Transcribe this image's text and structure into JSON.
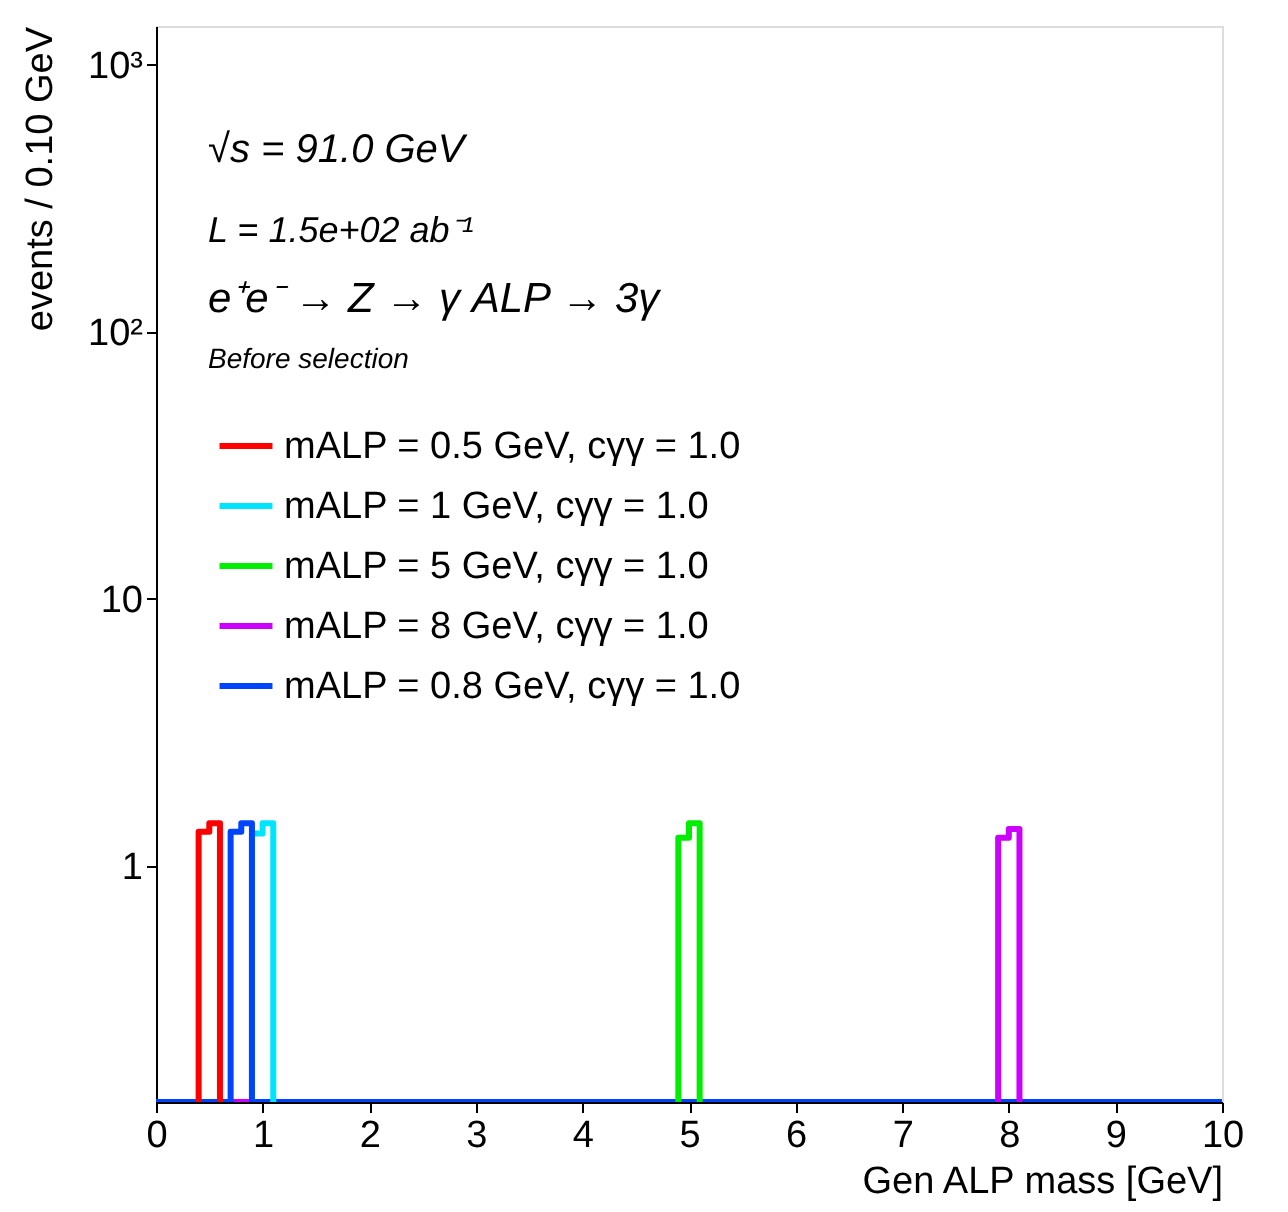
{
  "chart_data": {
    "type": "histogram",
    "xlabel": "Gen ALP mass [GeV]",
    "ylabel": "events / 0.10 GeV",
    "annotations": [
      "√s = 91.0 GeV",
      "L = 1.5e+02 ab⁻¹",
      "e⁺e⁻  → Z  →  γ ALP  → 3γ",
      "Before selection"
    ],
    "bins": [
      0.0,
      0.1,
      0.2,
      0.3,
      0.4,
      0.5,
      0.6,
      0.7,
      0.8,
      0.9,
      1.0,
      1.1,
      1.2,
      1.3,
      1.4,
      1.5,
      1.6,
      1.7,
      1.8,
      1.9,
      2.0,
      2.1,
      2.2,
      2.3,
      2.4,
      2.5,
      2.6,
      2.7,
      2.8,
      2.9,
      3.0,
      3.1,
      3.2,
      3.3,
      3.4,
      3.5,
      3.6,
      3.7,
      3.8,
      3.9,
      4.0,
      4.1,
      4.2,
      4.3,
      4.4,
      4.5,
      4.6,
      4.7,
      4.8,
      4.9,
      5.0,
      5.1,
      5.2,
      5.3,
      5.4,
      5.5,
      5.6,
      5.7,
      5.8,
      5.9,
      6.0,
      6.1,
      6.2,
      6.3,
      6.4,
      6.5,
      6.6,
      6.7,
      6.8,
      6.9,
      7.0,
      7.1,
      7.2,
      7.3,
      7.4,
      7.5,
      7.6,
      7.7,
      7.8,
      7.9,
      8.0,
      8.1,
      8.2,
      8.3,
      8.4,
      8.5,
      8.6,
      8.7,
      8.8,
      8.9,
      9.0,
      9.1,
      9.2,
      9.3,
      9.4,
      9.5,
      9.6,
      9.7,
      9.8,
      9.9,
      10.0
    ],
    "series": [
      {
        "name": "mALP = 0.5 GeV, cγγ = 1.0",
        "color": "#ff0000",
        "values": [
          null,
          null,
          null,
          null,
          1.34,
          1.44,
          null,
          null,
          null,
          null,
          null,
          null,
          null,
          null,
          null,
          null,
          null,
          null,
          null,
          null,
          null,
          null,
          null,
          null,
          null,
          null,
          null,
          null,
          null,
          null,
          null,
          null,
          null,
          null,
          null,
          null,
          null,
          null,
          null,
          null,
          null,
          null,
          null,
          null,
          null,
          null,
          null,
          null,
          null,
          null,
          null,
          null,
          null,
          null,
          null,
          null,
          null,
          null,
          null,
          null,
          null,
          null,
          null,
          null,
          null,
          null,
          null,
          null,
          null,
          null,
          null,
          null,
          null,
          null,
          null,
          null,
          null,
          null,
          null,
          null,
          null,
          null,
          null,
          null,
          null,
          null,
          null,
          null,
          null,
          null,
          null,
          null,
          null,
          null,
          null,
          null,
          null,
          null,
          null,
          null
        ]
      },
      {
        "name": "mALP = 1 GeV, cγγ = 1.0",
        "color": "#00e5ff",
        "values": [
          null,
          null,
          null,
          null,
          null,
          null,
          null,
          null,
          null,
          1.32,
          1.44,
          null,
          null,
          null,
          null,
          null,
          null,
          null,
          null,
          null,
          null,
          null,
          null,
          null,
          null,
          null,
          null,
          null,
          null,
          null,
          null,
          null,
          null,
          null,
          null,
          null,
          null,
          null,
          null,
          null,
          null,
          null,
          null,
          null,
          null,
          null,
          null,
          null,
          null,
          null,
          null,
          null,
          null,
          null,
          null,
          null,
          null,
          null,
          null,
          null,
          null,
          null,
          null,
          null,
          null,
          null,
          null,
          null,
          null,
          null,
          null,
          null,
          null,
          null,
          null,
          null,
          null,
          null,
          null,
          null,
          null,
          null,
          null,
          null,
          null,
          null,
          null,
          null,
          null,
          null,
          null,
          null,
          null,
          null,
          null,
          null,
          null,
          null,
          null,
          null
        ]
      },
      {
        "name": "mALP = 5 GeV, cγγ = 1.0",
        "color": "#00ee00",
        "values": [
          null,
          null,
          null,
          null,
          null,
          null,
          null,
          null,
          null,
          null,
          null,
          null,
          null,
          null,
          null,
          null,
          null,
          null,
          null,
          null,
          null,
          null,
          null,
          null,
          null,
          null,
          null,
          null,
          null,
          null,
          null,
          null,
          null,
          null,
          null,
          null,
          null,
          null,
          null,
          null,
          null,
          null,
          null,
          null,
          null,
          null,
          null,
          null,
          null,
          1.27,
          1.44,
          null,
          null,
          null,
          null,
          null,
          null,
          null,
          null,
          null,
          null,
          null,
          null,
          null,
          null,
          null,
          null,
          null,
          null,
          null,
          null,
          null,
          null,
          null,
          null,
          null,
          null,
          null,
          null,
          null,
          null,
          null,
          null,
          null,
          null,
          null,
          null,
          null,
          null,
          null,
          null,
          null,
          null,
          null,
          null,
          null,
          null,
          null,
          null,
          null
        ]
      },
      {
        "name": "mALP = 8 GeV, cγγ = 1.0",
        "color": "#cc00ff",
        "values": [
          null,
          null,
          null,
          null,
          null,
          null,
          null,
          null,
          null,
          null,
          null,
          null,
          null,
          null,
          null,
          null,
          null,
          null,
          null,
          null,
          null,
          null,
          null,
          null,
          null,
          null,
          null,
          null,
          null,
          null,
          null,
          null,
          null,
          null,
          null,
          null,
          null,
          null,
          null,
          null,
          null,
          null,
          null,
          null,
          null,
          null,
          null,
          null,
          null,
          null,
          null,
          null,
          null,
          null,
          null,
          null,
          null,
          null,
          null,
          null,
          null,
          null,
          null,
          null,
          null,
          null,
          null,
          null,
          null,
          null,
          null,
          null,
          null,
          null,
          null,
          null,
          null,
          null,
          null,
          1.27,
          1.37,
          null,
          null,
          null,
          null,
          null,
          null,
          null,
          null,
          null,
          null,
          null,
          null,
          null,
          null,
          null,
          null,
          null,
          null,
          null
        ]
      },
      {
        "name": "mALP = 0.8 GeV, cγγ = 1.0",
        "color": "#0044ff",
        "values": [
          null,
          null,
          null,
          null,
          null,
          null,
          null,
          1.34,
          1.44,
          null,
          null,
          null,
          null,
          null,
          null,
          null,
          null,
          null,
          null,
          null,
          null,
          null,
          null,
          null,
          null,
          null,
          null,
          null,
          null,
          null,
          null,
          null,
          null,
          null,
          null,
          null,
          null,
          null,
          null,
          null,
          null,
          null,
          null,
          null,
          null,
          null,
          null,
          null,
          null,
          null,
          null,
          null,
          null,
          null,
          null,
          null,
          null,
          null,
          null,
          null,
          null,
          null,
          null,
          null,
          null,
          null,
          null,
          null,
          null,
          null,
          null,
          null,
          null,
          null,
          null,
          null,
          null,
          null,
          null,
          null,
          null,
          null,
          null,
          null,
          null,
          null,
          null,
          null,
          null,
          null,
          null,
          null,
          null,
          null,
          null,
          null,
          null,
          null,
          null,
          null
        ]
      }
    ],
    "xlim": [
      0,
      10
    ],
    "xticks": [
      0,
      1,
      2,
      3,
      4,
      5,
      6,
      7,
      8,
      9,
      10
    ],
    "ylim": [
      0.13,
      1400
    ],
    "log": "y",
    "yticks": [
      1,
      10,
      {
        "value": 100,
        "label": "10²"
      },
      {
        "value": 1000,
        "label": "10³"
      }
    ],
    "grid": false,
    "legend": "left"
  }
}
